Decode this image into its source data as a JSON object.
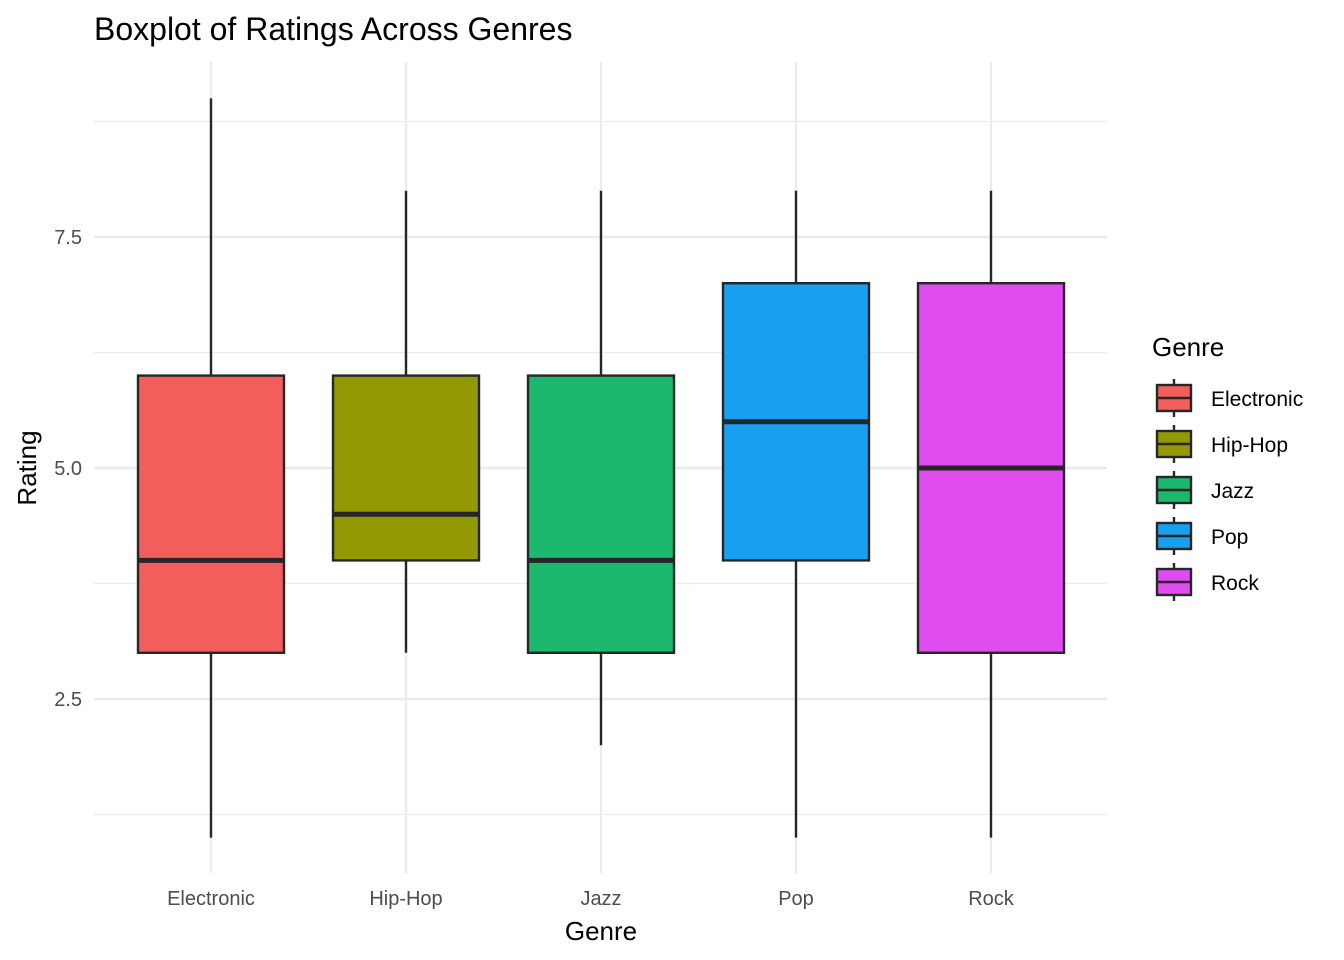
{
  "chart_data": {
    "type": "boxplot",
    "title": "Boxplot of Ratings Across Genres",
    "xlabel": "Genre",
    "ylabel": "Rating",
    "categories": [
      "Electronic",
      "Hip-Hop",
      "Jazz",
      "Pop",
      "Rock"
    ],
    "boxes": [
      {
        "name": "Electronic",
        "whisker_low": 1,
        "q1": 3,
        "median": 4,
        "q3": 6,
        "whisker_high": 9,
        "color": "#F25E5B"
      },
      {
        "name": "Hip-Hop",
        "whisker_low": 3,
        "q1": 4,
        "median": 4.5,
        "q3": 6,
        "whisker_high": 8,
        "color": "#939902"
      },
      {
        "name": "Jazz",
        "whisker_low": 2,
        "q1": 3,
        "median": 4,
        "q3": 6,
        "whisker_high": 8,
        "color": "#1BB86D"
      },
      {
        "name": "Pop",
        "whisker_low": 1,
        "q1": 4,
        "median": 5.5,
        "q3": 7,
        "whisker_high": 8,
        "color": "#179FF0"
      },
      {
        "name": "Rock",
        "whisker_low": 1,
        "q1": 3,
        "median": 5,
        "q3": 7,
        "whisker_high": 8,
        "color": "#DF4CF0"
      }
    ],
    "y_ticks": [
      2.5,
      5.0,
      7.5
    ],
    "y_tick_labels": [
      "2.5",
      "5.0",
      "7.5"
    ],
    "ylim": [
      0.6,
      9.4
    ],
    "grid": true,
    "legend": {
      "title": "Genre",
      "position": "right"
    }
  }
}
